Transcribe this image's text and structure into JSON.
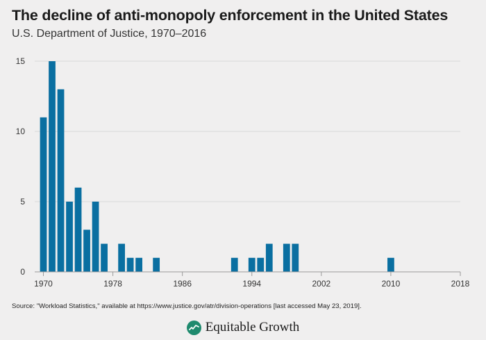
{
  "title": "The decline of anti-monopoly enforcement in the United States",
  "subtitle": "U.S. Department of Justice, 1970–2016",
  "source": "Source: \"Workload Statistics,\" available at https://www.justice.gov/atr/division-operations [last accessed May 23, 2019].",
  "brand": {
    "name": "Equitable Growth",
    "logo_icon": "growth-line-icon",
    "logo_color": "#1f8a6e"
  },
  "colors": {
    "bar": "#0a6fa1",
    "grid": "#d9d9d9",
    "axis": "#9a9a9a"
  },
  "chart_data": {
    "type": "bar",
    "title": "The decline of anti-monopoly enforcement in the United States",
    "subtitle": "U.S. Department of Justice, 1970–2016",
    "xlabel": "",
    "ylabel": "",
    "xlim": [
      1969,
      2018
    ],
    "ylim": [
      0,
      15
    ],
    "xticks": [
      "1970",
      "1978",
      "1986",
      "1994",
      "2002",
      "2010",
      "2018"
    ],
    "yticks": [
      "0",
      "5",
      "10",
      "15"
    ],
    "grid": true,
    "legend": "none",
    "x": [
      1970,
      1971,
      1972,
      1973,
      1974,
      1975,
      1976,
      1977,
      1978,
      1979,
      1980,
      1981,
      1982,
      1983,
      1984,
      1985,
      1986,
      1987,
      1988,
      1989,
      1990,
      1991,
      1992,
      1993,
      1994,
      1995,
      1996,
      1997,
      1998,
      1999,
      2000,
      2001,
      2002,
      2003,
      2004,
      2005,
      2006,
      2007,
      2008,
      2009,
      2010,
      2011,
      2012,
      2013,
      2014,
      2015,
      2016
    ],
    "values": [
      11,
      15,
      13,
      5,
      6,
      3,
      5,
      2,
      0,
      2,
      1,
      1,
      0,
      1,
      0,
      0,
      0,
      0,
      0,
      0,
      0,
      0,
      1,
      0,
      1,
      1,
      2,
      0,
      2,
      2,
      0,
      0,
      0,
      0,
      0,
      0,
      0,
      0,
      0,
      0,
      1,
      0,
      0,
      0,
      0,
      0,
      0
    ]
  }
}
